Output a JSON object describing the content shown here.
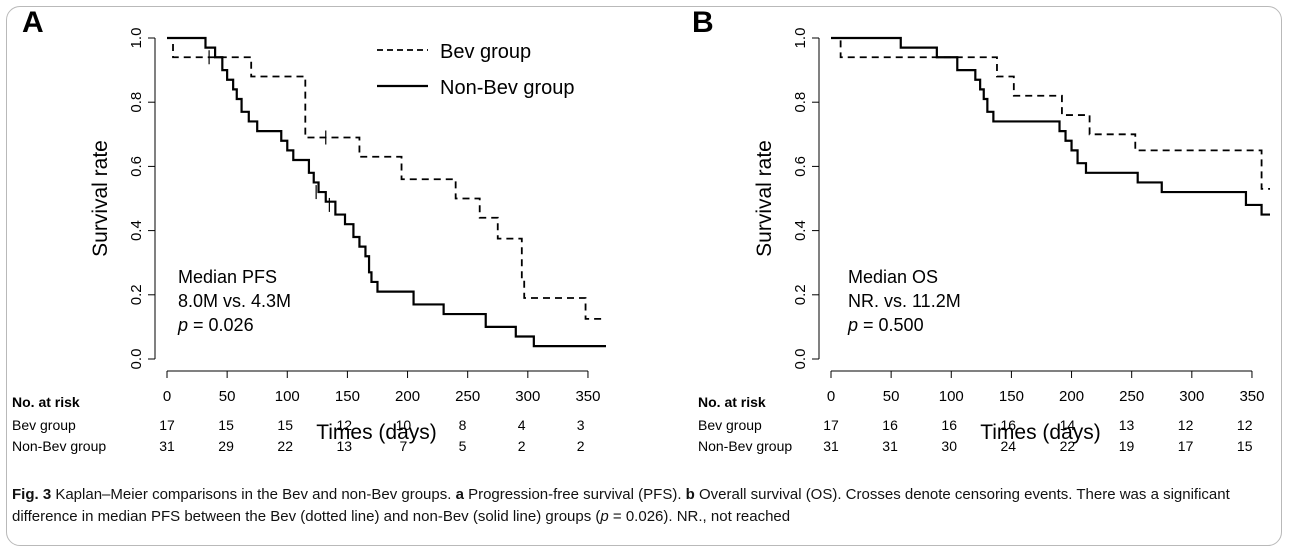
{
  "figure_id": "Fig. 3",
  "caption": {
    "lead": "Fig. 3",
    "text_1": " Kaplan–Meier comparisons in the Bev and non-Bev groups. ",
    "a_letter": "a",
    "a_text": " Progression-free survival (PFS). ",
    "b_letter": "b",
    "b_text": " Overall survival (OS). Crosses denote censoring events. There was a significant difference in median PFS between the Bev (dotted line) and non-Bev (solid line) groups (",
    "p_italic": "p",
    "tail": " = 0.026). NR., not reached"
  },
  "legend": {
    "bev": "Bev group",
    "nonbev": "Non-Bev group"
  },
  "chart_data": [
    {
      "type": "line",
      "panel_label": "A",
      "xlabel": "Times (days)",
      "ylabel": "Survival rate",
      "xlim": [
        0,
        365
      ],
      "ylim": [
        0,
        1
      ],
      "x_ticks": [
        0,
        50,
        100,
        150,
        200,
        250,
        300,
        350
      ],
      "y_ticks": [
        "0.0",
        "0.2",
        "0.4",
        "0.6",
        "0.8",
        "1.0"
      ],
      "annotation": [
        "Median PFS",
        "8.0M vs. 4.3M",
        "= 0.026"
      ],
      "annotation_p": "p",
      "series": [
        {
          "name": "Bev group",
          "style": "dashed",
          "steps": [
            [
              0,
              1.0
            ],
            [
              5,
              0.94
            ],
            [
              60,
              0.94
            ],
            [
              70,
              0.88
            ],
            [
              100,
              0.88
            ],
            [
              115,
              0.69
            ],
            [
              150,
              0.69
            ],
            [
              160,
              0.63
            ],
            [
              185,
              0.63
            ],
            [
              195,
              0.56
            ],
            [
              235,
              0.56
            ],
            [
              240,
              0.5
            ],
            [
              255,
              0.5
            ],
            [
              260,
              0.44
            ],
            [
              270,
              0.44
            ],
            [
              275,
              0.375
            ],
            [
              290,
              0.375
            ],
            [
              295,
              0.25
            ],
            [
              297,
              0.19
            ],
            [
              345,
              0.19
            ],
            [
              348,
              0.125
            ],
            [
              365,
              0.125
            ]
          ],
          "censored": [
            [
              35,
              0.94
            ],
            [
              132,
              0.69
            ]
          ]
        },
        {
          "name": "Non-Bev group",
          "style": "solid",
          "steps": [
            [
              0,
              1.0
            ],
            [
              30,
              1.0
            ],
            [
              32,
              0.97
            ],
            [
              40,
              0.94
            ],
            [
              46,
              0.9
            ],
            [
              50,
              0.87
            ],
            [
              55,
              0.84
            ],
            [
              58,
              0.81
            ],
            [
              62,
              0.77
            ],
            [
              68,
              0.74
            ],
            [
              75,
              0.71
            ],
            [
              90,
              0.71
            ],
            [
              95,
              0.68
            ],
            [
              100,
              0.65
            ],
            [
              105,
              0.62
            ],
            [
              115,
              0.62
            ],
            [
              118,
              0.58
            ],
            [
              122,
              0.55
            ],
            [
              126,
              0.52
            ],
            [
              132,
              0.49
            ],
            [
              140,
              0.45
            ],
            [
              148,
              0.42
            ],
            [
              155,
              0.38
            ],
            [
              160,
              0.35
            ],
            [
              165,
              0.32
            ],
            [
              168,
              0.27
            ],
            [
              170,
              0.24
            ],
            [
              175,
              0.21
            ],
            [
              200,
              0.21
            ],
            [
              205,
              0.17
            ],
            [
              225,
              0.17
            ],
            [
              230,
              0.14
            ],
            [
              260,
              0.14
            ],
            [
              265,
              0.1
            ],
            [
              285,
              0.1
            ],
            [
              290,
              0.07
            ],
            [
              300,
              0.07
            ],
            [
              305,
              0.04
            ],
            [
              365,
              0.04
            ]
          ],
          "censored": [
            [
              124,
              0.52
            ],
            [
              135,
              0.48
            ]
          ]
        }
      ],
      "risk_table": {
        "header": "No. at risk",
        "rows": [
          {
            "label": "Bev group",
            "values": [
              "17",
              "15",
              "15",
              "12",
              "10",
              "8",
              "4",
              "3"
            ]
          },
          {
            "label": "Non-Bev group",
            "values": [
              "31",
              "29",
              "22",
              "13",
              "7",
              "5",
              "2",
              "2"
            ]
          }
        ]
      }
    },
    {
      "type": "line",
      "panel_label": "B",
      "xlabel": "Times (days)",
      "ylabel": "Survival rate",
      "xlim": [
        0,
        365
      ],
      "ylim": [
        0,
        1
      ],
      "x_ticks": [
        0,
        50,
        100,
        150,
        200,
        250,
        300,
        350
      ],
      "y_ticks": [
        "0.0",
        "0.2",
        "0.4",
        "0.6",
        "0.8",
        "1.0"
      ],
      "annotation": [
        "Median OS",
        "NR. vs. 11.2M",
        "= 0.500"
      ],
      "annotation_p": "p",
      "series": [
        {
          "name": "Bev group",
          "style": "dashed",
          "steps": [
            [
              0,
              1.0
            ],
            [
              8,
              0.94
            ],
            [
              90,
              0.94
            ],
            [
              92,
              0.94
            ],
            [
              135,
              0.94
            ],
            [
              138,
              0.88
            ],
            [
              148,
              0.88
            ],
            [
              152,
              0.82
            ],
            [
              188,
              0.82
            ],
            [
              192,
              0.76
            ],
            [
              210,
              0.76
            ],
            [
              215,
              0.7
            ],
            [
              250,
              0.7
            ],
            [
              253,
              0.65
            ],
            [
              355,
              0.65
            ],
            [
              358,
              0.53
            ],
            [
              365,
              0.53
            ]
          ],
          "censored": []
        },
        {
          "name": "Non-Bev group",
          "style": "solid",
          "steps": [
            [
              0,
              1.0
            ],
            [
              55,
              1.0
            ],
            [
              58,
              0.97
            ],
            [
              85,
              0.97
            ],
            [
              88,
              0.94
            ],
            [
              100,
              0.94
            ],
            [
              105,
              0.9
            ],
            [
              118,
              0.9
            ],
            [
              120,
              0.87
            ],
            [
              124,
              0.84
            ],
            [
              127,
              0.81
            ],
            [
              130,
              0.77
            ],
            [
              135,
              0.74
            ],
            [
              185,
              0.74
            ],
            [
              190,
              0.71
            ],
            [
              195,
              0.68
            ],
            [
              200,
              0.65
            ],
            [
              205,
              0.61
            ],
            [
              212,
              0.58
            ],
            [
              250,
              0.58
            ],
            [
              255,
              0.55
            ],
            [
              270,
              0.55
            ],
            [
              275,
              0.52
            ],
            [
              340,
              0.52
            ],
            [
              345,
              0.48
            ],
            [
              355,
              0.48
            ],
            [
              358,
              0.45
            ],
            [
              365,
              0.45
            ]
          ],
          "censored": []
        }
      ],
      "risk_table": {
        "header": "No. at risk",
        "rows": [
          {
            "label": "Bev group",
            "values": [
              "17",
              "16",
              "16",
              "16",
              "14",
              "13",
              "12",
              "12"
            ]
          },
          {
            "label": "Non-Bev group",
            "values": [
              "31",
              "31",
              "30",
              "24",
              "22",
              "19",
              "17",
              "15"
            ]
          }
        ]
      }
    }
  ]
}
